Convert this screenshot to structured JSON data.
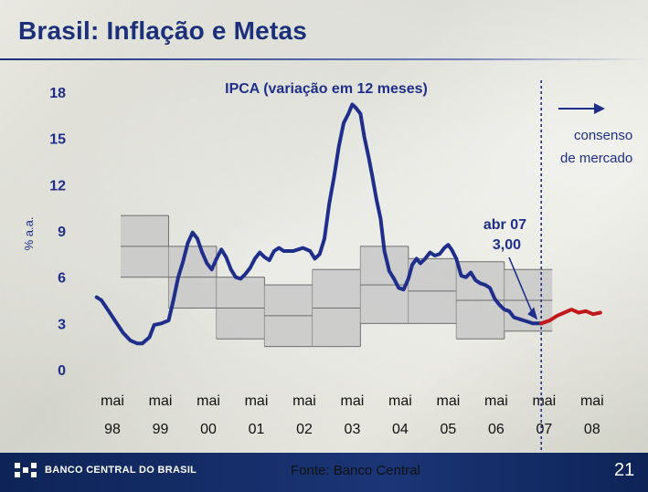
{
  "slide": {
    "title": "Brasil: Inflação e Metas",
    "source": "Fonte: Banco Central",
    "page_number": "21",
    "logo_text": "BANCO CENTRAL DO BRASIL"
  },
  "chart_data": {
    "type": "line",
    "title": "IPCA (variação em 12 meses)",
    "ylabel": "% a.a.",
    "ylim": [
      0,
      18
    ],
    "yticks": [
      0,
      3,
      6,
      9,
      12,
      15,
      18
    ],
    "xlim": [
      1997.7,
      2008.6
    ],
    "x_tick_labels": [
      {
        "x": 1998.33,
        "top": "mai",
        "bottom": "98"
      },
      {
        "x": 1999.33,
        "top": "mai",
        "bottom": "99"
      },
      {
        "x": 2000.33,
        "top": "mai",
        "bottom": "00"
      },
      {
        "x": 2001.33,
        "top": "mai",
        "bottom": "01"
      },
      {
        "x": 2002.33,
        "top": "mai",
        "bottom": "02"
      },
      {
        "x": 2003.33,
        "top": "mai",
        "bottom": "03"
      },
      {
        "x": 2004.33,
        "top": "mai",
        "bottom": "04"
      },
      {
        "x": 2005.33,
        "top": "mai",
        "bottom": "05"
      },
      {
        "x": 2006.33,
        "top": "mai",
        "bottom": "06"
      },
      {
        "x": 2007.33,
        "top": "mai",
        "bottom": "07"
      },
      {
        "x": 2008.33,
        "top": "mai",
        "bottom": "08"
      }
    ],
    "series": [
      {
        "color": "#1f2e8a",
        "points": [
          [
            1998.0,
            4.7
          ],
          [
            1998.1,
            4.5
          ],
          [
            1998.25,
            3.8
          ],
          [
            1998.4,
            3.1
          ],
          [
            1998.55,
            2.4
          ],
          [
            1998.7,
            1.9
          ],
          [
            1998.85,
            1.7
          ],
          [
            1998.95,
            1.7
          ],
          [
            1999.1,
            2.1
          ],
          [
            1999.2,
            2.9
          ],
          [
            1999.35,
            3.0
          ],
          [
            1999.5,
            3.2
          ],
          [
            1999.6,
            4.5
          ],
          [
            1999.7,
            6.0
          ],
          [
            1999.8,
            7.0
          ],
          [
            1999.9,
            8.2
          ],
          [
            2000.0,
            8.9
          ],
          [
            2000.1,
            8.5
          ],
          [
            2000.2,
            7.6
          ],
          [
            2000.3,
            6.9
          ],
          [
            2000.4,
            6.5
          ],
          [
            2000.5,
            7.2
          ],
          [
            2000.6,
            7.8
          ],
          [
            2000.7,
            7.3
          ],
          [
            2000.8,
            6.5
          ],
          [
            2000.9,
            6.0
          ],
          [
            2001.0,
            5.9
          ],
          [
            2001.1,
            6.2
          ],
          [
            2001.2,
            6.6
          ],
          [
            2001.3,
            7.2
          ],
          [
            2001.4,
            7.6
          ],
          [
            2001.5,
            7.3
          ],
          [
            2001.6,
            7.1
          ],
          [
            2001.7,
            7.7
          ],
          [
            2001.8,
            7.9
          ],
          [
            2001.9,
            7.7
          ],
          [
            2002.0,
            7.7
          ],
          [
            2002.1,
            7.7
          ],
          [
            2002.2,
            7.8
          ],
          [
            2002.3,
            7.9
          ],
          [
            2002.45,
            7.7
          ],
          [
            2002.55,
            7.2
          ],
          [
            2002.65,
            7.5
          ],
          [
            2002.75,
            8.5
          ],
          [
            2002.85,
            10.8
          ],
          [
            2002.95,
            12.5
          ],
          [
            2003.05,
            14.5
          ],
          [
            2003.15,
            16.0
          ],
          [
            2003.25,
            16.6
          ],
          [
            2003.33,
            17.2
          ],
          [
            2003.4,
            17.0
          ],
          [
            2003.5,
            16.6
          ],
          [
            2003.58,
            15.1
          ],
          [
            2003.67,
            13.8
          ],
          [
            2003.75,
            12.5
          ],
          [
            2003.83,
            11.1
          ],
          [
            2003.92,
            9.8
          ],
          [
            2004.0,
            7.7
          ],
          [
            2004.1,
            6.4
          ],
          [
            2004.2,
            5.9
          ],
          [
            2004.3,
            5.3
          ],
          [
            2004.4,
            5.2
          ],
          [
            2004.5,
            5.9
          ],
          [
            2004.58,
            6.8
          ],
          [
            2004.67,
            7.2
          ],
          [
            2004.75,
            6.9
          ],
          [
            2004.85,
            7.2
          ],
          [
            2004.95,
            7.6
          ],
          [
            2005.05,
            7.4
          ],
          [
            2005.15,
            7.5
          ],
          [
            2005.25,
            7.9
          ],
          [
            2005.33,
            8.1
          ],
          [
            2005.4,
            7.8
          ],
          [
            2005.5,
            7.2
          ],
          [
            2005.6,
            6.1
          ],
          [
            2005.7,
            6.0
          ],
          [
            2005.8,
            6.3
          ],
          [
            2005.9,
            5.8
          ],
          [
            2006.0,
            5.6
          ],
          [
            2006.1,
            5.5
          ],
          [
            2006.2,
            5.3
          ],
          [
            2006.3,
            4.6
          ],
          [
            2006.4,
            4.2
          ],
          [
            2006.5,
            3.9
          ],
          [
            2006.6,
            3.8
          ],
          [
            2006.7,
            3.4
          ],
          [
            2006.8,
            3.3
          ],
          [
            2006.9,
            3.2
          ],
          [
            2007.0,
            3.1
          ],
          [
            2007.1,
            3.0
          ],
          [
            2007.2,
            3.0
          ],
          [
            2007.27,
            3.0
          ]
        ]
      },
      {
        "color": "#c0181b",
        "points": [
          [
            2007.27,
            3.0
          ],
          [
            2007.45,
            3.2
          ],
          [
            2007.6,
            3.5
          ],
          [
            2007.75,
            3.7
          ],
          [
            2007.9,
            3.9
          ],
          [
            2008.05,
            3.7
          ],
          [
            2008.2,
            3.8
          ],
          [
            2008.35,
            3.6
          ],
          [
            2008.5,
            3.7
          ]
        ]
      }
    ],
    "target_bands": [
      {
        "x0": 1998.5,
        "x1": 1999.5,
        "center": 8.0,
        "lower": 6.0,
        "upper": 10.0
      },
      {
        "x0": 1999.5,
        "x1": 2000.5,
        "center": 6.0,
        "lower": 4.0,
        "upper": 8.0
      },
      {
        "x0": 2000.5,
        "x1": 2001.5,
        "center": 4.0,
        "lower": 2.0,
        "upper": 6.0
      },
      {
        "x0": 2001.5,
        "x1": 2002.5,
        "center": 3.5,
        "lower": 1.5,
        "upper": 5.5
      },
      {
        "x0": 2002.5,
        "x1": 2003.5,
        "center": 4.0,
        "lower": 1.5,
        "upper": 6.5
      },
      {
        "x0": 2003.5,
        "x1": 2004.5,
        "center": 5.5,
        "lower": 3.0,
        "upper": 8.0
      },
      {
        "x0": 2004.5,
        "x1": 2005.5,
        "center": 5.1,
        "lower": 3.0,
        "upper": 7.2
      },
      {
        "x0": 2005.5,
        "x1": 2006.5,
        "center": 4.5,
        "lower": 2.0,
        "upper": 7.0
      },
      {
        "x0": 2006.5,
        "x1": 2007.5,
        "center": 4.5,
        "lower": 2.5,
        "upper": 6.5
      }
    ],
    "band_color": "#c8c8c8",
    "divider_x": 2007.27,
    "annotations": [
      {
        "id": "consensus",
        "line1": "consenso",
        "line2": "de mercado"
      },
      {
        "id": "abr07",
        "line1": "abr 07",
        "line2": "3,00",
        "x": 2007.27,
        "y": 3.0
      }
    ]
  }
}
